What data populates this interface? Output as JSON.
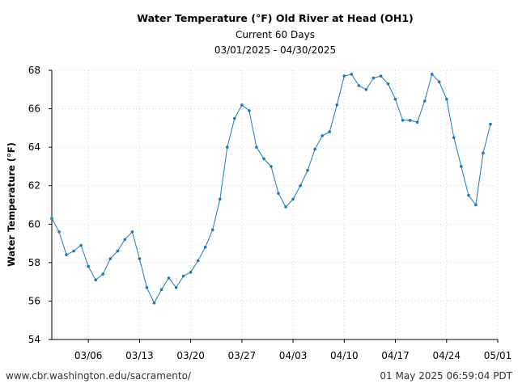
{
  "footer": {
    "url": "www.cbr.washington.edu/sacramento/",
    "timestamp": "01 May 2025 06:59:04 PDT"
  },
  "colors": {
    "line": "#1f77b4",
    "grid": "#cccccc",
    "axis": "#000000"
  },
  "chart_data": {
    "type": "line",
    "title": "Water Temperature (°F) Old River at Head (OH1)",
    "subtitle": "Current 60 Days",
    "date_range": "03/01/2025 - 04/30/2025",
    "xlabel": "",
    "ylabel": "Water Temperature (°F)",
    "ylim": [
      54,
      68
    ],
    "xlim": [
      "03/01/2025",
      "05/01/2025"
    ],
    "yticks": [
      54,
      56,
      58,
      60,
      62,
      64,
      66,
      68
    ],
    "xticks": [
      {
        "date": "2025-03-06",
        "label": "03/06"
      },
      {
        "date": "2025-03-13",
        "label": "03/13"
      },
      {
        "date": "2025-03-20",
        "label": "03/20"
      },
      {
        "date": "2025-03-27",
        "label": "03/27"
      },
      {
        "date": "2025-04-03",
        "label": "04/03"
      },
      {
        "date": "2025-04-10",
        "label": "04/10"
      },
      {
        "date": "2025-04-17",
        "label": "04/17"
      },
      {
        "date": "2025-04-24",
        "label": "04/24"
      },
      {
        "date": "2025-05-01",
        "label": "05/01"
      }
    ],
    "grid": true,
    "series": [
      {
        "dates": [
          "2025-03-01",
          "2025-03-02",
          "2025-03-03",
          "2025-03-04",
          "2025-03-05",
          "2025-03-06",
          "2025-03-07",
          "2025-03-08",
          "2025-03-09",
          "2025-03-10",
          "2025-03-11",
          "2025-03-12",
          "2025-03-13",
          "2025-03-14",
          "2025-03-15",
          "2025-03-16",
          "2025-03-17",
          "2025-03-18",
          "2025-03-19",
          "2025-03-20",
          "2025-03-21",
          "2025-03-22",
          "2025-03-23",
          "2025-03-24",
          "2025-03-25",
          "2025-03-26",
          "2025-03-27",
          "2025-03-28",
          "2025-03-29",
          "2025-03-30",
          "2025-03-31",
          "2025-04-01",
          "2025-04-02",
          "2025-04-03",
          "2025-04-04",
          "2025-04-05",
          "2025-04-06",
          "2025-04-07",
          "2025-04-08",
          "2025-04-09",
          "2025-04-10",
          "2025-04-11",
          "2025-04-12",
          "2025-04-13",
          "2025-04-14",
          "2025-04-15",
          "2025-04-16",
          "2025-04-17",
          "2025-04-18",
          "2025-04-19",
          "2025-04-20",
          "2025-04-21",
          "2025-04-22",
          "2025-04-23",
          "2025-04-24",
          "2025-04-25",
          "2025-04-26",
          "2025-04-27",
          "2025-04-28",
          "2025-04-29",
          "2025-04-30"
        ],
        "values": [
          60.3,
          59.6,
          58.4,
          58.6,
          58.9,
          57.8,
          57.1,
          57.4,
          58.2,
          58.6,
          59.2,
          59.6,
          58.2,
          56.7,
          55.9,
          56.6,
          57.2,
          56.7,
          57.3,
          57.5,
          58.1,
          58.8,
          59.7,
          61.3,
          64.0,
          65.5,
          66.2,
          65.9,
          64.0,
          63.4,
          63.0,
          61.6,
          60.9,
          61.3,
          62.0,
          62.8,
          63.9,
          64.6,
          64.8,
          66.2,
          67.7,
          67.8,
          67.2,
          67.0,
          67.6,
          67.7,
          67.3,
          66.5,
          65.4,
          65.4,
          65.3,
          66.4,
          67.8,
          67.4,
          66.5,
          64.5,
          63.0,
          61.5,
          61.0,
          63.7,
          65.2
        ]
      }
    ]
  }
}
